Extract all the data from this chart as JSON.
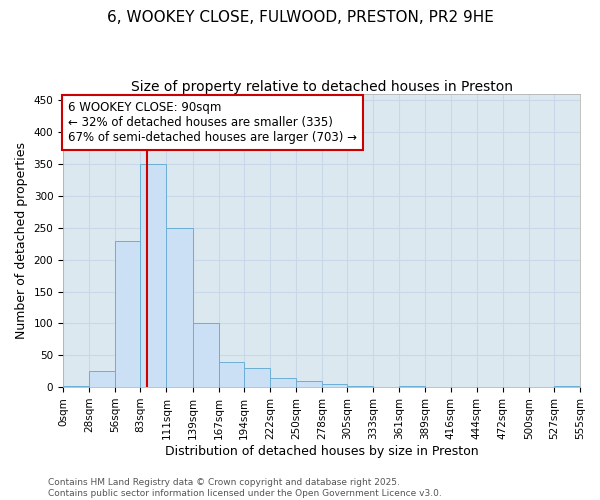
{
  "title1": "6, WOOKEY CLOSE, FULWOOD, PRESTON, PR2 9HE",
  "title2": "Size of property relative to detached houses in Preston",
  "xlabel": "Distribution of detached houses by size in Preston",
  "ylabel": "Number of detached properties",
  "bar_values": [
    2,
    25,
    230,
    350,
    250,
    100,
    40,
    30,
    15,
    10,
    5,
    2,
    0,
    2,
    0,
    0,
    0,
    0,
    0,
    2
  ],
  "bin_labels": [
    "0sqm",
    "28sqm",
    "56sqm",
    "83sqm",
    "111sqm",
    "139sqm",
    "167sqm",
    "194sqm",
    "222sqm",
    "250sqm",
    "278sqm",
    "305sqm",
    "333sqm",
    "361sqm",
    "389sqm",
    "416sqm",
    "444sqm",
    "472sqm",
    "500sqm",
    "527sqm",
    "555sqm"
  ],
  "bin_edges": [
    0,
    28,
    56,
    83,
    111,
    139,
    167,
    194,
    222,
    250,
    278,
    305,
    333,
    361,
    389,
    416,
    444,
    472,
    500,
    527,
    555
  ],
  "bar_color": "#cce0f5",
  "bar_edge_color": "#6aafd6",
  "vline_x": 90,
  "vline_color": "#cc0000",
  "annotation_line1": "6 WOOKEY CLOSE: 90sqm",
  "annotation_line2": "← 32% of detached houses are smaller (335)",
  "annotation_line3": "67% of semi-detached houses are larger (703) →",
  "annotation_box_color": "#ffffff",
  "annotation_box_edge": "#cc0000",
  "ylim": [
    0,
    460
  ],
  "yticks": [
    0,
    50,
    100,
    150,
    200,
    250,
    300,
    350,
    400,
    450
  ],
  "grid_color": "#c8d8e8",
  "bg_color": "#dce8f0",
  "footer_text": "Contains HM Land Registry data © Crown copyright and database right 2025.\nContains public sector information licensed under the Open Government Licence v3.0.",
  "title_fontsize": 11,
  "subtitle_fontsize": 10,
  "axis_label_fontsize": 9,
  "tick_fontsize": 7.5,
  "annotation_fontsize": 8.5,
  "footer_fontsize": 6.5
}
